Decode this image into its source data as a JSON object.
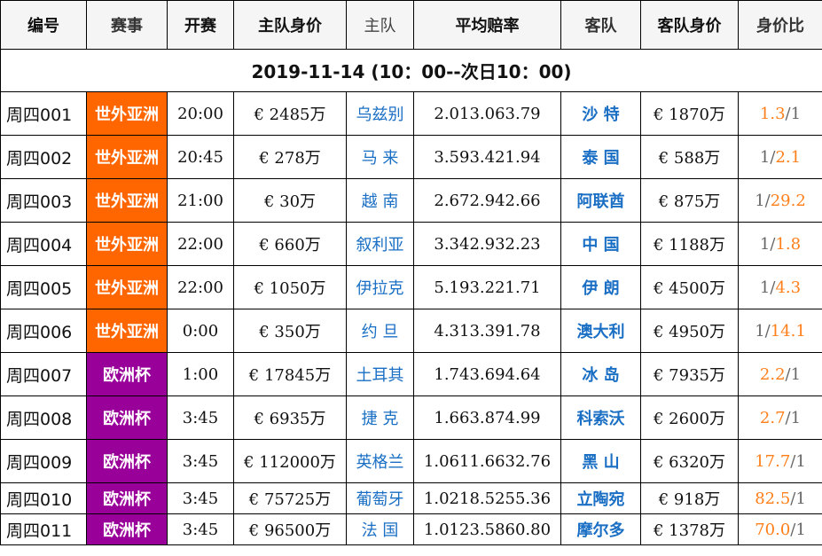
{
  "headers": [
    "编号",
    "赛事",
    "开赛",
    "主队身价",
    "主队",
    "平均赔率",
    "客队",
    "客队身价",
    "身价比"
  ],
  "date_row": "2019-11-14 (10：00--次日10：00)",
  "league_colors": {
    "世外亚洲": "#ff6600",
    "欧洲杯": "#990099"
  },
  "rows": [
    {
      "id": "周四001",
      "league": "世外亚洲",
      "color": "#ff6600",
      "time": "20:00",
      "home_value": "€ 2485万",
      "home": "乌兹别",
      "odds": "2.013.063.79",
      "away": "沙 特",
      "away_value": "€ 1870万",
      "ratio_a": "1.3",
      "ratio_b": "1",
      "hi": "a"
    },
    {
      "id": "周四002",
      "league": "世外亚洲",
      "color": "#ff6600",
      "time": "20:45",
      "home_value": "€ 278万",
      "home": "马 来",
      "odds": "3.593.421.94",
      "away": "泰 国",
      "away_value": "€ 588万",
      "ratio_a": "1",
      "ratio_b": "2.1",
      "hi": "b"
    },
    {
      "id": "周四003",
      "league": "世外亚洲",
      "color": "#ff6600",
      "time": "21:00",
      "home_value": "€ 30万",
      "home": "越 南",
      "odds": "2.672.942.66",
      "away": "阿联酋",
      "away_value": "€ 875万",
      "ratio_a": "1",
      "ratio_b": "29.2",
      "hi": "b"
    },
    {
      "id": "周四004",
      "league": "世外亚洲",
      "color": "#ff6600",
      "time": "22:00",
      "home_value": "€ 660万",
      "home": "叙利亚",
      "odds": "3.342.932.23",
      "away": "中 国",
      "away_value": "€ 1188万",
      "ratio_a": "1",
      "ratio_b": "1.8",
      "hi": "b"
    },
    {
      "id": "周四005",
      "league": "世外亚洲",
      "color": "#ff6600",
      "time": "22:00",
      "home_value": "€ 1050万",
      "home": "伊拉克",
      "odds": "5.193.221.71",
      "away": "伊 朗",
      "away_value": "€ 4500万",
      "ratio_a": "1",
      "ratio_b": "4.3",
      "hi": "b"
    },
    {
      "id": "周四006",
      "league": "世外亚洲",
      "color": "#ff6600",
      "time": "0:00",
      "home_value": "€ 350万",
      "home": "约 旦",
      "odds": "4.313.391.78",
      "away": "澳大利",
      "away_value": "€ 4950万",
      "ratio_a": "1",
      "ratio_b": "14.1",
      "hi": "b"
    },
    {
      "id": "周四007",
      "league": "欧洲杯",
      "color": "#990099",
      "time": "1:00",
      "home_value": "€ 17845万",
      "home": "土耳其",
      "odds": "1.743.694.64",
      "away": "冰 岛",
      "away_value": "€ 7935万",
      "ratio_a": "2.2",
      "ratio_b": "1",
      "hi": "a"
    },
    {
      "id": "周四008",
      "league": "欧洲杯",
      "color": "#990099",
      "time": "3:45",
      "home_value": "€ 6935万",
      "home": "捷 克",
      "odds": "1.663.874.99",
      "away": "科索沃",
      "away_value": "€ 2600万",
      "ratio_a": "2.7",
      "ratio_b": "1",
      "hi": "a"
    },
    {
      "id": "周四009",
      "league": "欧洲杯",
      "color": "#990099",
      "time": "3:45",
      "home_value": "€ 112000万",
      "home": "英格兰",
      "odds": "1.0611.6632.76",
      "away": "黑 山",
      "away_value": "€ 6320万",
      "ratio_a": "17.7",
      "ratio_b": "1",
      "hi": "a"
    },
    {
      "id": "周四010",
      "league": "欧洲杯",
      "color": "#990099",
      "time": "3:45",
      "home_value": "€ 75725万",
      "home": "葡萄牙",
      "odds": "1.0218.5255.36",
      "away": "立陶宛",
      "away_value": "€ 918万",
      "ratio_a": "82.5",
      "ratio_b": "1",
      "hi": "a"
    },
    {
      "id": "周四011",
      "league": "欧洲杯",
      "color": "#990099",
      "time": "3:45",
      "home_value": "€ 96500万",
      "home": "法 国",
      "odds": "1.0123.5860.80",
      "away": "摩尔多",
      "away_value": "€ 1378万",
      "ratio_a": "70.0",
      "ratio_b": "1",
      "hi": "a"
    }
  ]
}
